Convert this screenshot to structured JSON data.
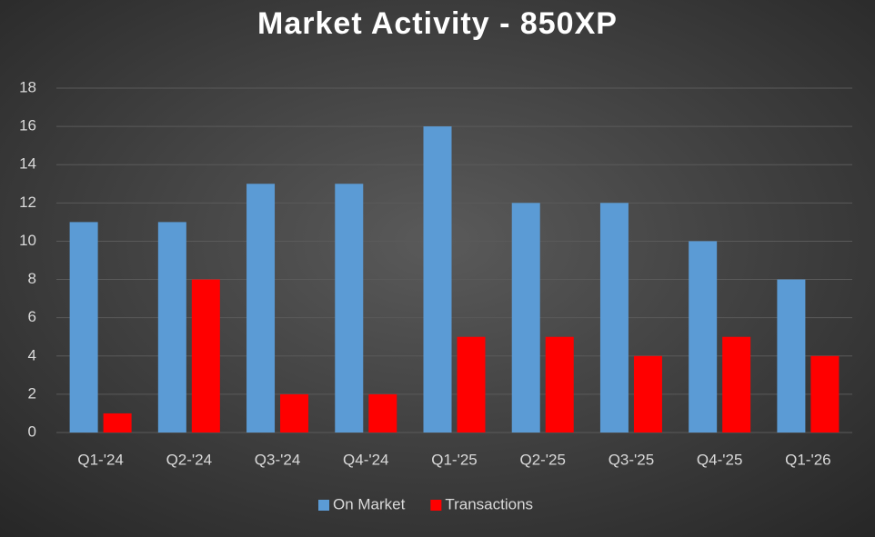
{
  "chart_data": {
    "type": "bar",
    "title": "Market Activity - 850XP",
    "categories": [
      "Q1-'24",
      "Q2-'24",
      "Q3-'24",
      "Q4-'24",
      "Q1-'25",
      "Q2-'25",
      "Q3-'25",
      "Q4-'25",
      "Q1-'26"
    ],
    "series": [
      {
        "name": "On Market",
        "color": "#5b9bd5",
        "values": [
          11,
          11,
          13,
          13,
          16,
          12,
          12,
          10,
          8
        ]
      },
      {
        "name": "Transactions",
        "color": "#ff0000",
        "values": [
          1,
          8,
          2,
          2,
          5,
          5,
          4,
          5,
          4
        ]
      }
    ],
    "ylim": [
      0,
      18
    ],
    "yticks": [
      0,
      2,
      4,
      6,
      8,
      10,
      12,
      14,
      16,
      18
    ],
    "grid": true,
    "legend": "bottom"
  }
}
